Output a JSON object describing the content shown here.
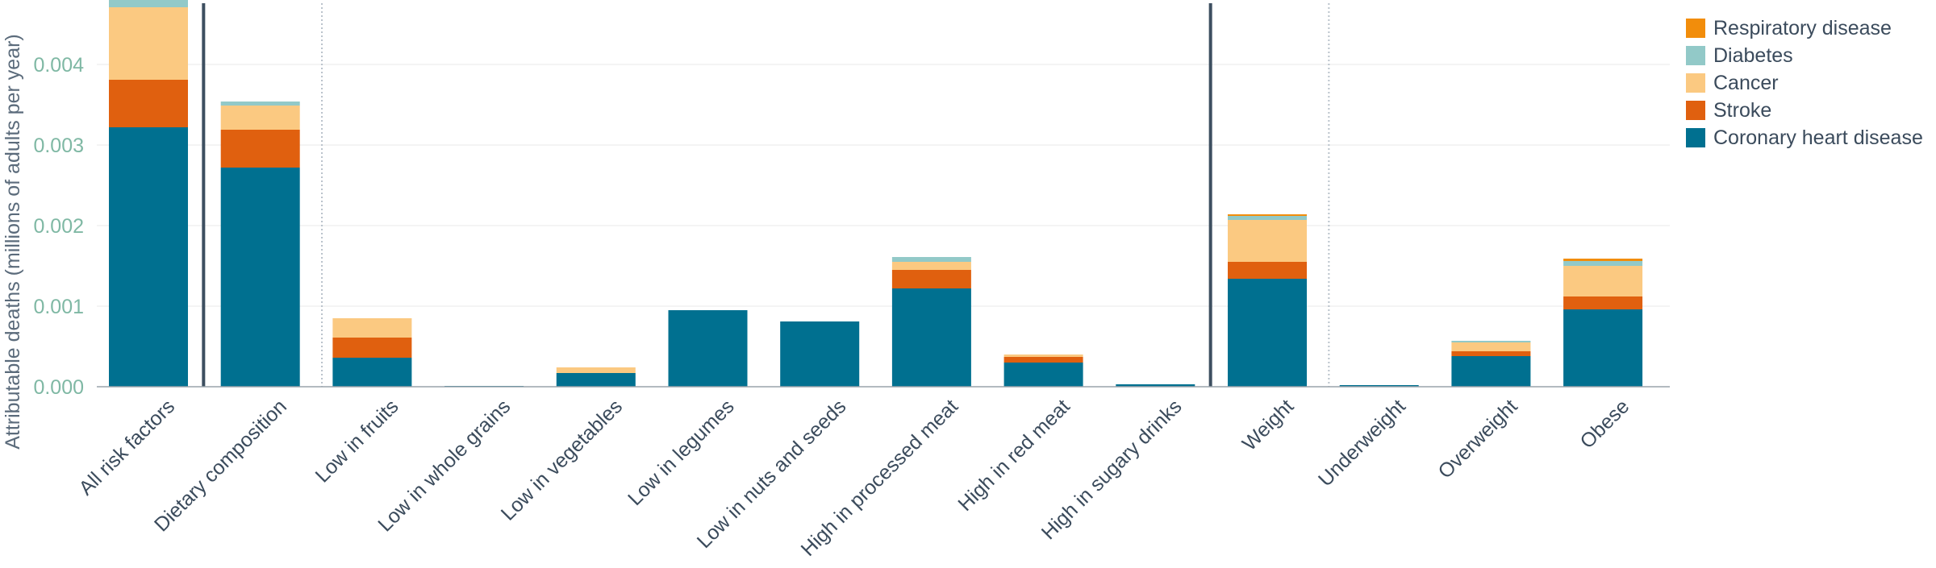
{
  "chart_data": {
    "type": "bar",
    "stacked": true,
    "title": "",
    "xlabel": "",
    "ylabel": "Attributable deaths (millions of adults per year)",
    "ylim": [
      0,
      0.0048
    ],
    "yticks": [
      "0.000",
      "0.001",
      "0.002",
      "0.003",
      "0.004"
    ],
    "ytick_values": [
      0,
      0.001,
      0.002,
      0.003,
      0.004
    ],
    "grid": true,
    "legend_position": "top-right",
    "categories": [
      "All risk factors",
      "Dietary composition",
      "Low in fruits",
      "Low in whole grains",
      "Low in vegetables",
      "Low in legumes",
      "Low in nuts and seeds",
      "High in processed meat",
      "High in red meat",
      "High in sugary drinks",
      "Weight",
      "Underweight",
      "Overweight",
      "Obese"
    ],
    "series": [
      {
        "name": "Coronary heart disease",
        "color": "#007090",
        "values": [
          0.00322,
          0.00272,
          0.00036,
          1e-05,
          0.00017,
          0.00095,
          0.00081,
          0.00122,
          0.0003,
          3e-05,
          0.00134,
          2e-05,
          0.00038,
          0.00096
        ]
      },
      {
        "name": "Stroke",
        "color": "#e0600f",
        "values": [
          0.00059,
          0.00047,
          0.00025,
          0.0,
          0.0,
          0.0,
          0.0,
          0.00023,
          7e-05,
          0.0,
          0.00021,
          0.0,
          6e-05,
          0.00016
        ]
      },
      {
        "name": "Cancer",
        "color": "#fbc981",
        "values": [
          0.0009,
          0.0003,
          0.00024,
          0.0,
          7e-05,
          0.0,
          0.0,
          0.0001,
          3e-05,
          0.0,
          0.00052,
          0.0,
          0.00011,
          0.00038
        ]
      },
      {
        "name": "Diabetes",
        "color": "#92c9c8",
        "values": [
          0.0001,
          5e-05,
          0.0,
          0.0,
          0.0,
          0.0,
          0.0,
          6e-05,
          0.0,
          0.0,
          5e-05,
          0.0,
          2e-05,
          6e-05
        ]
      },
      {
        "name": "Respiratory disease",
        "color": "#f28d0b",
        "values": [
          2e-05,
          0.0,
          0.0,
          0.0,
          0.0,
          0.0,
          0.0,
          0.0,
          0.0,
          0.0,
          2e-05,
          0.0,
          0.0,
          3e-05
        ]
      }
    ],
    "legend_order": [
      "Respiratory disease",
      "Diabetes",
      "Cancer",
      "Stroke",
      "Coronary heart disease"
    ],
    "group_separators": [
      {
        "after": "All risk factors",
        "style": "solid"
      },
      {
        "after": "Dietary composition",
        "style": "dotted"
      },
      {
        "after": "High in sugary drinks",
        "style": "solid"
      },
      {
        "after": "Weight",
        "style": "dotted"
      }
    ]
  }
}
